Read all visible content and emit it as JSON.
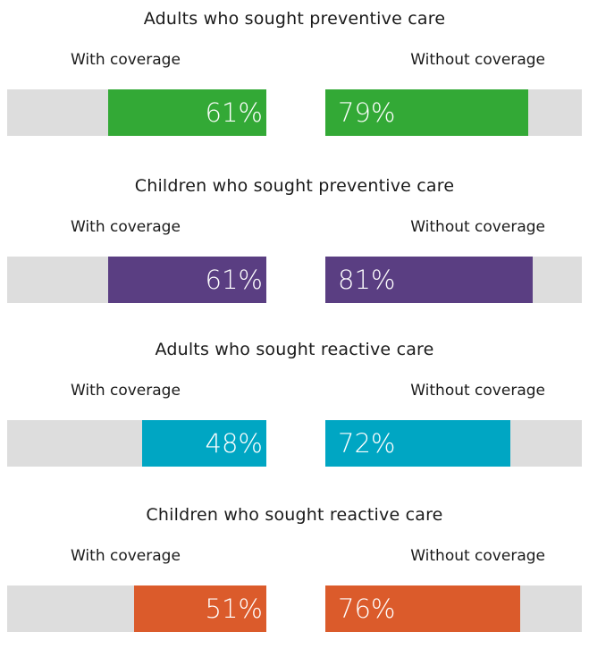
{
  "chart_data": [
    {
      "type": "bar",
      "title": "Adults who sought preventive care",
      "categories": [
        "With coverage",
        "Without coverage"
      ],
      "values": [
        61,
        79
      ],
      "value_labels": [
        "61%",
        "79%"
      ],
      "ylim": [
        0,
        100
      ],
      "color": "#33a936"
    },
    {
      "type": "bar",
      "title": "Children who sought preventive care",
      "categories": [
        "With coverage",
        "Without coverage"
      ],
      "values": [
        61,
        81
      ],
      "value_labels": [
        "61%",
        "81%"
      ],
      "ylim": [
        0,
        100
      ],
      "color": "#5a3e82"
    },
    {
      "type": "bar",
      "title": "Adults who sought reactive care",
      "categories": [
        "With coverage",
        "Without coverage"
      ],
      "values": [
        48,
        72
      ],
      "value_labels": [
        "48%",
        "72%"
      ],
      "ylim": [
        0,
        100
      ],
      "color": "#00a6c3"
    },
    {
      "type": "bar",
      "title": "Children who sought reactive care",
      "categories": [
        "With coverage",
        "Without coverage"
      ],
      "values": [
        51,
        76
      ],
      "value_labels": [
        "51%",
        "76%"
      ],
      "ylim": [
        0,
        100
      ],
      "color": "#db5b2b"
    }
  ]
}
